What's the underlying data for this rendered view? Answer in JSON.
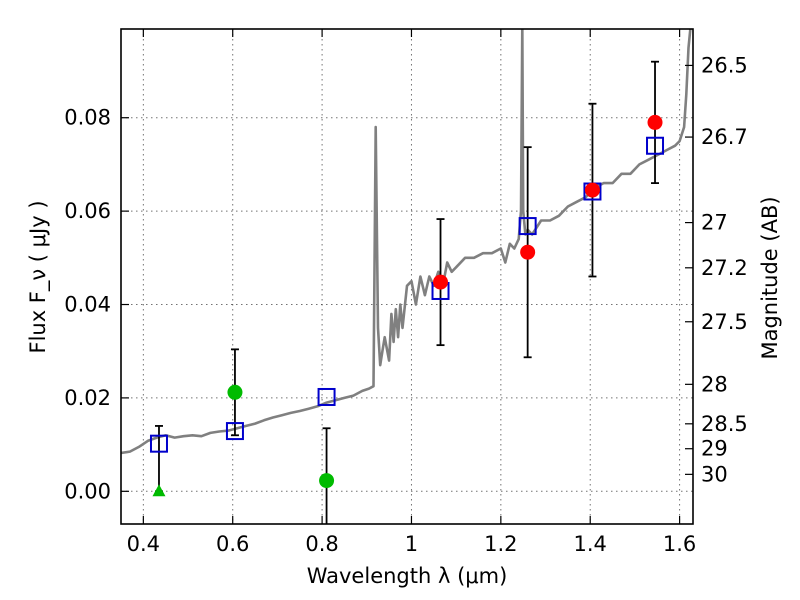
{
  "chart_data": {
    "type": "scatter",
    "xlabel": "Wavelength  λ (μm)",
    "ylabel": "Flux  F_ν  ( μJy )",
    "y2label": "Magnitude (AB)",
    "xlim": [
      0.35,
      1.63
    ],
    "ylim": [
      -0.007,
      0.099
    ],
    "x_ticks": [
      "0.4",
      "0.6",
      "0.8",
      "1",
      "1.2",
      "1.4",
      "1.6"
    ],
    "x_tick_values": [
      0.4,
      0.6,
      0.8,
      1.0,
      1.2,
      1.4,
      1.6
    ],
    "y_ticks": [
      "0.00",
      "0.02",
      "0.04",
      "0.06",
      "0.08"
    ],
    "y_tick_values": [
      0.0,
      0.02,
      0.04,
      0.06,
      0.08
    ],
    "mag_ticks": [
      "26.5",
      "26.7",
      "27",
      "27.2",
      "27.5",
      "28",
      "28.5",
      "29",
      "30"
    ],
    "mag_tick_values": [
      26.5,
      26.7,
      27.0,
      27.2,
      27.5,
      28.0,
      28.5,
      29.0,
      30.0
    ],
    "grid": true,
    "colors": {
      "spectrum": "#808080",
      "model": "#0000cc",
      "detection": "#ff0000",
      "optical": "#00bb00",
      "errorbar": "#000000"
    },
    "spectrum": {
      "x": [
        0.35,
        0.37,
        0.39,
        0.41,
        0.43,
        0.45,
        0.47,
        0.49,
        0.51,
        0.53,
        0.55,
        0.57,
        0.59,
        0.61,
        0.63,
        0.65,
        0.67,
        0.69,
        0.71,
        0.73,
        0.75,
        0.77,
        0.79,
        0.81,
        0.83,
        0.85,
        0.87,
        0.89,
        0.905,
        0.915,
        0.92,
        0.925,
        0.93,
        0.935,
        0.94,
        0.95,
        0.955,
        0.96,
        0.965,
        0.97,
        0.975,
        0.98,
        0.99,
        1.0,
        1.01,
        1.02,
        1.03,
        1.04,
        1.05,
        1.06,
        1.07,
        1.08,
        1.09,
        1.1,
        1.12,
        1.14,
        1.16,
        1.18,
        1.2,
        1.21,
        1.22,
        1.23,
        1.24,
        1.245,
        1.248,
        1.25,
        1.255,
        1.26,
        1.27,
        1.29,
        1.31,
        1.33,
        1.35,
        1.37,
        1.39,
        1.41,
        1.43,
        1.45,
        1.47,
        1.49,
        1.51,
        1.53,
        1.55,
        1.57,
        1.59,
        1.6,
        1.61,
        1.615,
        1.62,
        1.625
      ],
      "y": [
        0.0082,
        0.0085,
        0.0095,
        0.0108,
        0.0115,
        0.012,
        0.0115,
        0.0118,
        0.012,
        0.0118,
        0.0125,
        0.0128,
        0.013,
        0.0135,
        0.014,
        0.0145,
        0.0152,
        0.0158,
        0.0163,
        0.0168,
        0.0172,
        0.0177,
        0.0182,
        0.019,
        0.0195,
        0.02,
        0.0205,
        0.0215,
        0.022,
        0.0225,
        0.078,
        0.035,
        0.027,
        0.03,
        0.033,
        0.028,
        0.038,
        0.032,
        0.039,
        0.033,
        0.04,
        0.035,
        0.044,
        0.045,
        0.04,
        0.046,
        0.042,
        0.046,
        0.044,
        0.047,
        0.044,
        0.049,
        0.047,
        0.048,
        0.05,
        0.05,
        0.051,
        0.051,
        0.052,
        0.049,
        0.053,
        0.052,
        0.054,
        0.06,
        0.1,
        0.06,
        0.055,
        0.056,
        0.055,
        0.058,
        0.058,
        0.059,
        0.061,
        0.062,
        0.063,
        0.065,
        0.066,
        0.066,
        0.068,
        0.068,
        0.07,
        0.071,
        0.072,
        0.073,
        0.074,
        0.075,
        0.078,
        0.085,
        0.095,
        0.1
      ]
    },
    "model_points": {
      "x": [
        0.435,
        0.605,
        0.81,
        1.065,
        1.26,
        1.405,
        1.545
      ],
      "y": [
        0.0102,
        0.0129,
        0.0202,
        0.0429,
        0.0568,
        0.0642,
        0.074
      ]
    },
    "detections": {
      "x": [
        1.065,
        1.26,
        1.405,
        1.545
      ],
      "y": [
        0.0448,
        0.0512,
        0.0645,
        0.079
      ],
      "yerr": [
        0.0135,
        0.0225,
        0.0185,
        0.013
      ]
    },
    "optical_points": {
      "x": [
        0.605,
        0.81
      ],
      "y": [
        0.0212,
        0.0023
      ],
      "yerr": [
        0.0092,
        0.0112
      ]
    },
    "upper_limit": {
      "x": 0.435,
      "y": 0.0,
      "yerr_up": 0.014
    }
  }
}
